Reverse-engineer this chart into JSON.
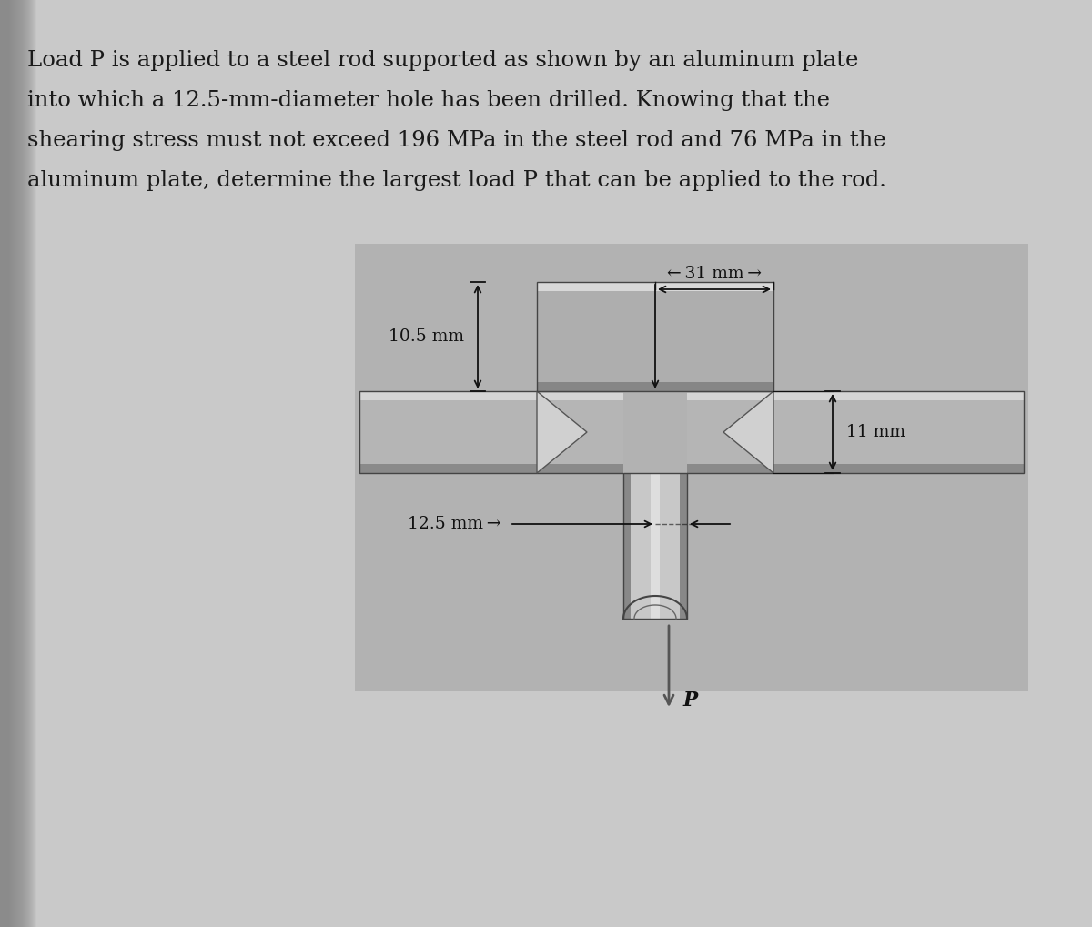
{
  "problem_text_lines": [
    "Load P is applied to a steel rod supported as shown by an aluminum plate",
    "into which a 12.5-mm-diameter hole has been drilled. Knowing that the",
    "shearing stress must not exceed 196 MPa in the steel rod and 76 MPa in the",
    "aluminum plate, determine the largest load P that can be applied to the rod."
  ],
  "text_fontsize": 17.5,
  "text_color": "#1a1a1a",
  "page_bg": "#c9c9c9",
  "diagram_bg": "#b2b2b2",
  "label_31mm": "← 31 mm →",
  "label_10_5mm": "10.5 mm",
  "label_12_5mm": "12.5 mm →",
  "label_11mm": "11 mm",
  "label_P": "P",
  "label_fontsize": 13.5,
  "annot_color": "#111111",
  "plate_fill": "#b5b5b5",
  "plate_top_light": "#d8d8d8",
  "plate_bot_dark": "#8a8a8a",
  "head_fill": "#aeaeae",
  "head_top_light": "#d0d0d0",
  "head_bot_dark": "#868686",
  "rod_fill": "#b8b8b8",
  "rod_edge": "#555555",
  "shear_fill": "#d2d2d2",
  "shadow_color": "#999999"
}
